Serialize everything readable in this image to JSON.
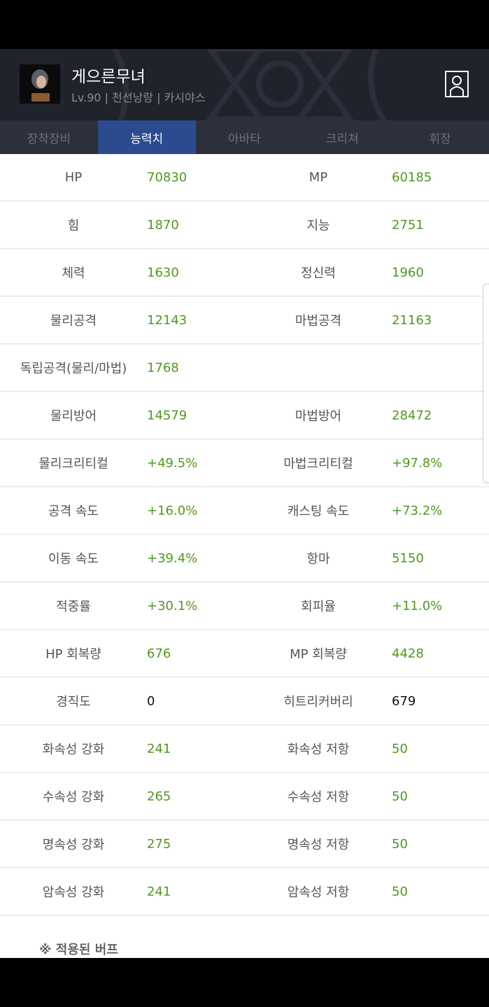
{
  "profile": {
    "name": "게으른무녀",
    "subtitle": "Lv.90 | 천선낭랑 | 카시야스"
  },
  "tabs": [
    {
      "label": "장착장비",
      "active": false
    },
    {
      "label": "능력치",
      "active": true
    },
    {
      "label": "아바타",
      "active": false
    },
    {
      "label": "크리쳐",
      "active": false
    },
    {
      "label": "휘장",
      "active": false
    }
  ],
  "stats": [
    {
      "l1": "HP",
      "v1": "70830",
      "l2": "MP",
      "v2": "60185"
    },
    {
      "l1": "힘",
      "v1": "1870",
      "l2": "지능",
      "v2": "2751"
    },
    {
      "l1": "체력",
      "v1": "1630",
      "l2": "정신력",
      "v2": "1960"
    },
    {
      "l1": "물리공격",
      "v1": "12143",
      "l2": "마법공격",
      "v2": "21163"
    },
    {
      "l1": "독립공격(물리/마법)",
      "v1": "1768",
      "l2": "",
      "v2": ""
    },
    {
      "l1": "물리방어",
      "v1": "14579",
      "l2": "마법방어",
      "v2": "28472"
    },
    {
      "l1": "물리크리티컬",
      "v1": "+49.5%",
      "l2": "마법크리티컬",
      "v2": "+97.8%"
    },
    {
      "l1": "공격 속도",
      "v1": "+16.0%",
      "l2": "캐스팅 속도",
      "v2": "+73.2%"
    },
    {
      "l1": "이동 속도",
      "v1": "+39.4%",
      "l2": "항마",
      "v2": "5150"
    },
    {
      "l1": "적중률",
      "v1": "+30.1%",
      "l2": "회피율",
      "v2": "+11.0%"
    },
    {
      "l1": "HP 회복량",
      "v1": "676",
      "l2": "MP 회복량",
      "v2": "4428"
    },
    {
      "l1": "경직도",
      "v1": "0",
      "l2": "히트리커버리",
      "v2": "679"
    },
    {
      "l1": "화속성 강화",
      "v1": "241",
      "l2": "화속성 저항",
      "v2": "50"
    },
    {
      "l1": "수속성 강화",
      "v1": "265",
      "l2": "수속성 저항",
      "v2": "50"
    },
    {
      "l1": "명속성 강화",
      "v1": "275",
      "l2": "명속성 저항",
      "v2": "50"
    },
    {
      "l1": "암속성 강화",
      "v1": "241",
      "l2": "암속성 저항",
      "v2": "50"
    }
  ],
  "buff_title": "※ 적용된 버프",
  "colors": {
    "value": "#4e9a1c",
    "active_tab": "#2c4b8f"
  }
}
